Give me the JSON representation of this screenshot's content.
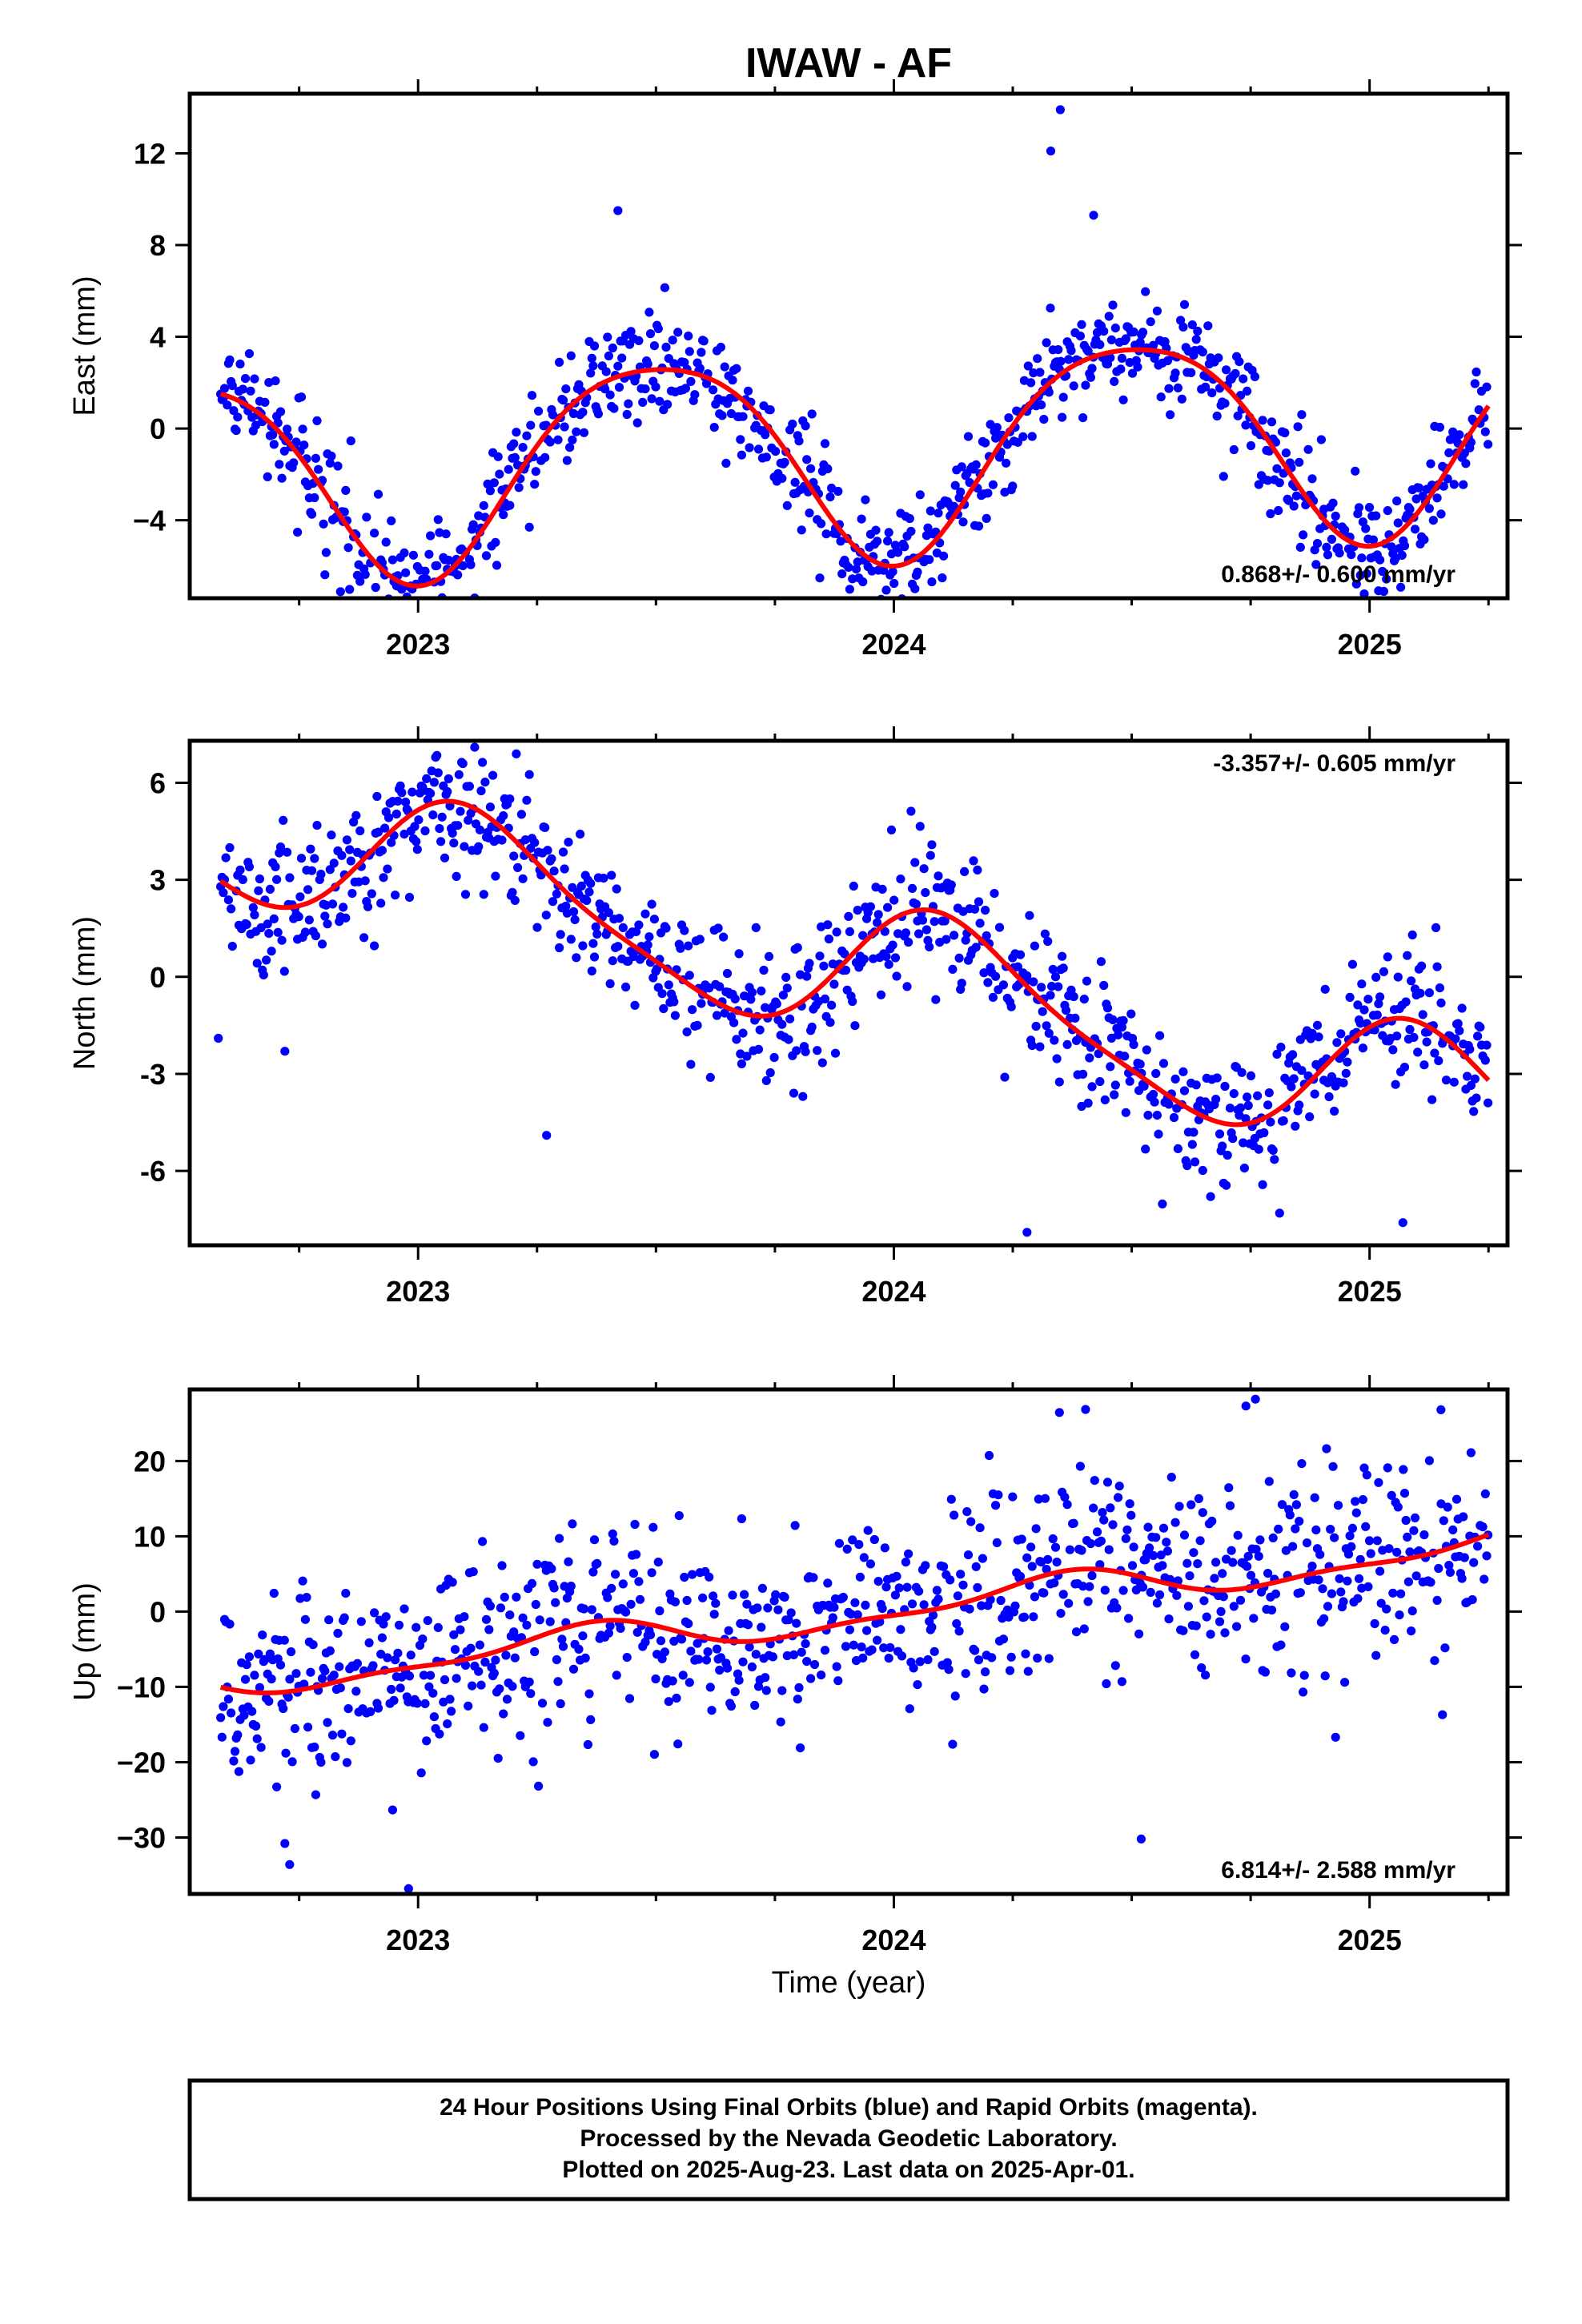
{
  "title": "IWAW - AF",
  "xlabel": "Time (year)",
  "footer": {
    "line1": "24 Hour Positions Using Final Orbits (blue) and Rapid Orbits (magenta).",
    "line2": "Processed by the Nevada Geodetic Laboratory.",
    "line3": "Plotted on 2025-Aug-23. Last data on 2025-Apr-01."
  },
  "colors": {
    "points": "#0000ff",
    "fit": "#ff0000",
    "frame": "#000000"
  },
  "chart_data": [
    {
      "type": "scatter",
      "component": "east",
      "ylabel": "East (mm)",
      "xlim": [
        2022.52,
        2025.29
      ],
      "ylim": [
        -7.4,
        14.6
      ],
      "yticks": [
        12,
        8,
        4,
        0,
        -4
      ],
      "ytick_labels": [
        "12",
        "8",
        "4",
        "0",
        "−4"
      ],
      "xticks": [
        2023,
        2024,
        2025
      ],
      "xtick_labels": [
        "2023",
        "2024",
        "2025"
      ],
      "rate": "0.868+/- 0.600 mm/yr",
      "rate_position": "bottom-right",
      "fit_model": {
        "trend": [
          -0.8,
          0.868
        ],
        "annual": [
          -4.5,
          0
        ],
        "semiannual": [
          -0.7,
          0
        ],
        "t0": 2024.0
      },
      "noise_sd": 1.2,
      "outliers": [
        [
          2024.35,
          13.9
        ],
        [
          2024.33,
          12.1
        ],
        [
          2023.42,
          9.5
        ],
        [
          2024.42,
          9.3
        ]
      ]
    },
    {
      "type": "scatter",
      "component": "north",
      "ylabel": "North (mm)",
      "xlim": [
        2022.52,
        2025.29
      ],
      "ylim": [
        -8.3,
        7.3
      ],
      "yticks": [
        6,
        3,
        0,
        -3,
        -6
      ],
      "ytick_labels": [
        "6",
        "3",
        "0",
        "-3",
        "-6"
      ],
      "xticks": [
        2023,
        2024,
        2025
      ],
      "xtick_labels": [
        "2023",
        "2024",
        "2025"
      ],
      "rate": "-3.357+/- 0.605 mm/yr",
      "rate_position": "top-right",
      "fit_model": {
        "trend": [
          -0.1,
          -3.357
        ],
        "annual": [
          1.5,
          1.5
        ],
        "semiannual": [
          0.4,
          0.2
        ],
        "t0": 2024.0
      },
      "noise_sd": 1.1,
      "outliers": [
        [
          2022.58,
          -1.9
        ],
        [
          2022.72,
          -2.3
        ],
        [
          2023.27,
          -4.9
        ],
        [
          2024.28,
          -7.9
        ],
        [
          2025.07,
          -7.6
        ]
      ]
    },
    {
      "type": "scatter",
      "component": "up",
      "ylabel": "Up (mm)",
      "xlim": [
        2022.52,
        2025.29
      ],
      "ylim": [
        -37.5,
        29.5
      ],
      "yticks": [
        20,
        10,
        0,
        -10,
        -20,
        -30
      ],
      "ytick_labels": [
        "20",
        "10",
        "0",
        "−10",
        "−20",
        "−30"
      ],
      "xticks": [
        2023,
        2024,
        2025
      ],
      "xtick_labels": [
        "2023",
        "2024",
        "2025"
      ],
      "rate": "6.814+/- 2.588 mm/yr",
      "rate_position": "bottom-right",
      "fit_model": {
        "trend": [
          0.2,
          6.814
        ],
        "annual": [
          -1.0,
          1.8
        ],
        "semiannual": [
          0.3,
          -0.8
        ],
        "t0": 2024.0
      },
      "noise_sd": 6.5,
      "outliers": [
        [
          2022.98,
          -36.8
        ],
        [
          2022.72,
          -30.8
        ],
        [
          2022.73,
          -33.6
        ],
        [
          2024.52,
          -30.2
        ],
        [
          2024.76,
          28.2
        ],
        [
          2025.15,
          26.8
        ],
        [
          2024.74,
          27.3
        ]
      ]
    }
  ]
}
